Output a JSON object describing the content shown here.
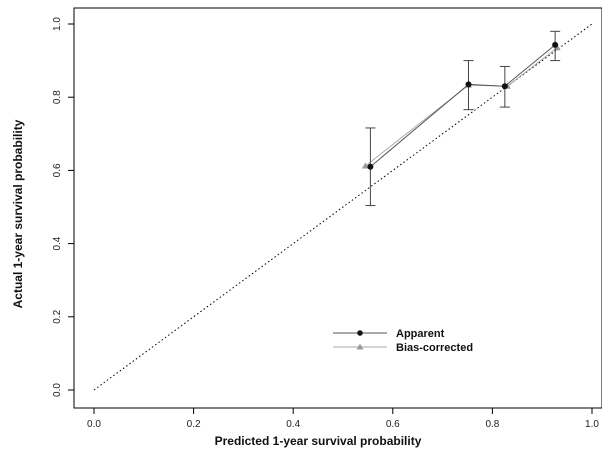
{
  "chart_data": {
    "type": "line",
    "xlabel": "Predicted 1-year survival probability",
    "ylabel": "Actual 1-year survival probability",
    "xlim": [
      0,
      1
    ],
    "ylim": [
      0,
      1
    ],
    "x_ticks": [
      "0.0",
      "0.2",
      "0.4",
      "0.6",
      "0.8",
      "1.0"
    ],
    "y_ticks": [
      "0.0",
      "0.2",
      "0.4",
      "0.6",
      "0.8",
      "1.0"
    ],
    "grid": false,
    "legend_position": "bottom-right",
    "reference_line": {
      "type": "diagonal",
      "from": [
        0,
        0
      ],
      "to": [
        1,
        1
      ],
      "style": "dotted"
    },
    "series": [
      {
        "name": "Apparent",
        "marker": "circle",
        "color": "#555555",
        "x": [
          0.555,
          0.752,
          0.825,
          0.926
        ],
        "y": [
          0.61,
          0.835,
          0.83,
          0.943
        ],
        "error_low": [
          0.504,
          0.766,
          0.773,
          0.9
        ],
        "error_high": [
          0.716,
          0.9,
          0.884,
          0.98
        ]
      },
      {
        "name": "Bias-corrected",
        "marker": "triangle",
        "color": "#9a9a9a",
        "x": [
          0.545,
          0.752,
          0.83,
          0.93
        ],
        "y": [
          0.612,
          0.833,
          0.83,
          0.935
        ]
      }
    ]
  }
}
